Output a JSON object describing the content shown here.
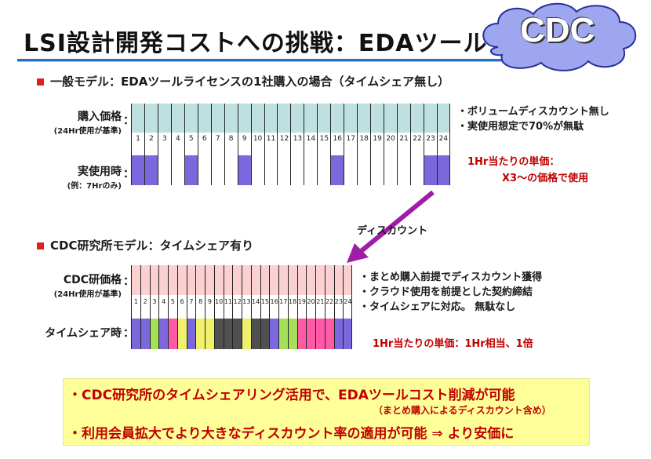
{
  "title": "LSI設計開発コストへの挑戦：EDAツールタイムシェア",
  "logo_text": "CDC",
  "section1": {
    "heading": "一般モデル：EDAツールライセンスの1社購入の場合（タイムシェア無し）",
    "row1_label": "購入価格",
    "row1_sub": "(24Hr使用が基準)",
    "row2_label": "実使用時",
    "row2_sub": "(例：7Hrのみ)",
    "colon": "：",
    "numbers": [
      "1",
      "2",
      "3",
      "4",
      "5",
      "6",
      "7",
      "8",
      "9",
      "10",
      "11",
      "12",
      "13",
      "14",
      "15",
      "16",
      "17",
      "18",
      "19",
      "20",
      "21",
      "22",
      "23",
      "24"
    ],
    "usage_hours": [
      1,
      2,
      5,
      9,
      16,
      23,
      24
    ],
    "notes": [
      "・ボリュームディスカウント無し",
      "・実使用想定で70%が無駄"
    ],
    "unit_price_line1": "1Hr当たりの単価：",
    "unit_price_line2": "X3～の価格で使用",
    "colors": {
      "band": "#bfe0e0",
      "usage": "#7b68dc"
    }
  },
  "arrow_label": "ディスカウント",
  "section2": {
    "heading": "CDC研究所モデル：タイムシェア有り",
    "row1_label": "CDC研価格",
    "row1_sub": "(24Hr使用が基準)",
    "row2_label": "タイムシェア時",
    "colon": "：",
    "numbers": [
      "1",
      "2",
      "3",
      "4",
      "5",
      "6",
      "7",
      "8",
      "9",
      "10",
      "11",
      "12",
      "13",
      "14",
      "15",
      "16",
      "17",
      "18",
      "19",
      "20",
      "21",
      "22",
      "23",
      "24"
    ],
    "share_colors": [
      "#7b68dc",
      "#7b68dc",
      "#a6e05a",
      "#7b68dc",
      "#ff5aa5",
      "#f0f06a",
      "#7b68dc",
      "#f0f06a",
      "#f0f06a",
      "#505050",
      "#505050",
      "#505050",
      "#f0f06a",
      "#505050",
      "#505050",
      "#7b68dc",
      "#a6e05a",
      "#a6e05a",
      "#ff5aa5",
      "#ff5aa5",
      "#ff5aa5",
      "#ff5aa5",
      "#7b68dc",
      "#7b68dc"
    ],
    "notes": [
      "・まとめ購入前提でディスカウント獲得",
      "・クラウド使用を前提とした契約締結",
      "・タイムシェアに対応。 無駄なし"
    ],
    "unit_price": "1Hr当たりの単価：1Hr相当、1倍",
    "colors": {
      "band": "#fbd0d0"
    }
  },
  "bottom": {
    "line1": "・CDC研究所のタイムシェアリング活用で、EDAツールコスト削減が可能",
    "line2": "（まとめ購入によるディスカウント含め）",
    "line3": "・利用会員拡大でより大きなディスカウント率の適用が可能 ⇒ より安価に"
  }
}
